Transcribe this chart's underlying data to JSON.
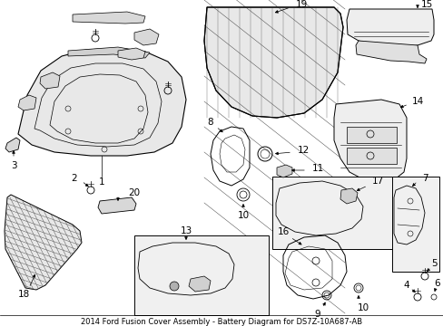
{
  "title": "2014 Ford Fusion Cover Assembly - Battery Diagram for DS7Z-10A687-AB",
  "bg": "#ffffff",
  "lc": "#000000",
  "fs": 7.5,
  "title_fs": 6.0
}
